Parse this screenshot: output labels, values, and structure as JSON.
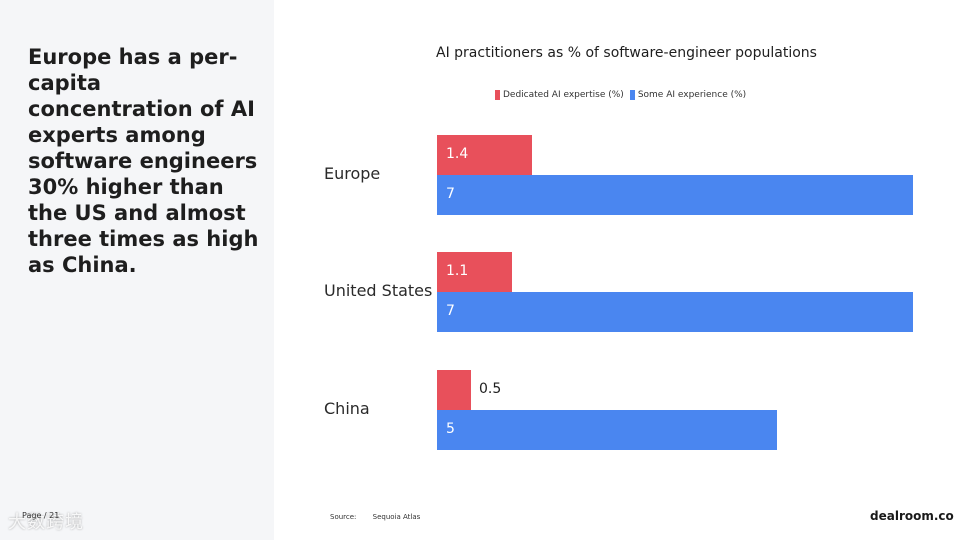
{
  "headline": "Europe has a per-capita concentration of AI experts among software engineers 30% higher than the US and almost three times as high as China.",
  "page_number": "Page / 21",
  "watermark": "大数跨境",
  "source_label": "Source:",
  "source_value": "Sequoia Atlas",
  "brand": "dealroom.co",
  "colors": {
    "dedicated": "#e8505b",
    "some": "#4a86f0",
    "panel": "#f5f6f8"
  },
  "chart_data": {
    "type": "bar",
    "orientation": "horizontal",
    "title": "AI practitioners as % of software-engineer populations",
    "categories": [
      "Europe",
      "United States",
      "China"
    ],
    "series": [
      {
        "name": "Dedicated AI expertise (%)",
        "values": [
          1.4,
          1.1,
          0.5
        ],
        "labels": [
          "1.4",
          "1.1",
          "0.5"
        ]
      },
      {
        "name": "Some AI experience (%)",
        "values": [
          7,
          7,
          5
        ],
        "labels": [
          "7",
          "7",
          "5"
        ]
      }
    ],
    "xlim": [
      0,
      7
    ],
    "xlabel": "",
    "ylabel": "",
    "legend": "top",
    "grid": false
  }
}
